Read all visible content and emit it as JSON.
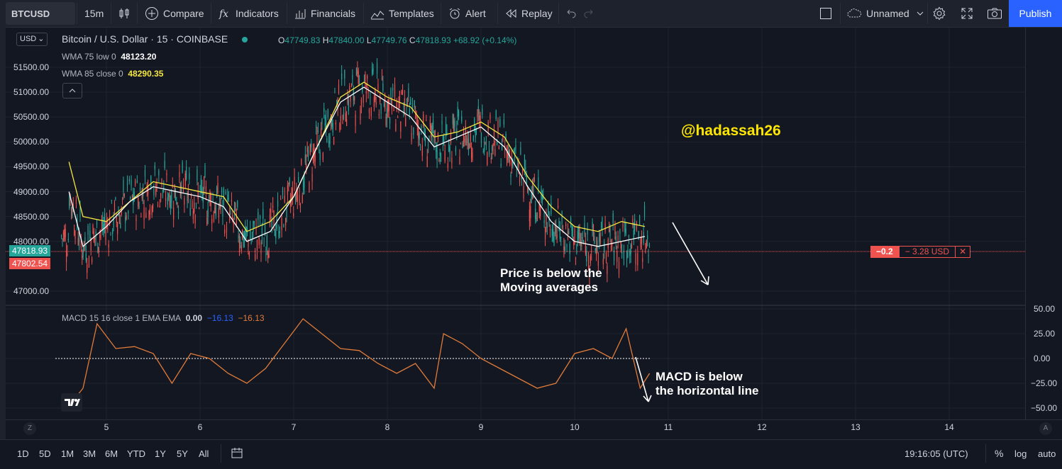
{
  "toolbar": {
    "symbol": "BTCUSD",
    "interval": "15m",
    "compare": "Compare",
    "indicators": "Indicators",
    "financials": "Financials",
    "templates": "Templates",
    "alert": "Alert",
    "replay": "Replay",
    "layout_name": "Unnamed",
    "publish": "Publish"
  },
  "legend": {
    "title": "Bitcoin / U.S. Dollar · 15 · COINBASE",
    "currency": "USD",
    "o_label": "O",
    "o_value": "47749.83",
    "h_label": "H",
    "h_value": "47840.00",
    "l_label": "L",
    "l_value": "47749.76",
    "c_label": "C",
    "c_value": "47818.93",
    "change": "+68.92 (+0.14%)",
    "wma1_label": "WMA 75 low 0",
    "wma1_value": "48123.20",
    "wma2_label": "WMA 85 close 0",
    "wma2_value": "48290.35",
    "macd_label": "MACD 15 16 close 1 EMA EMA",
    "macd_v1": "0.00",
    "macd_v2": "−16.13",
    "macd_v3": "−16.13"
  },
  "price_axis": {
    "ticks": [
      "51500.00",
      "51000.00",
      "50500.00",
      "50000.00",
      "49500.00",
      "49000.00",
      "48500.00",
      "48000.00",
      "47000.00"
    ],
    "current_price": "47818.93",
    "line_price": "47802.54"
  },
  "macd_axis": {
    "ticks": [
      "50.00",
      "25.00",
      "0.00",
      "−25.00",
      "−50.00"
    ]
  },
  "time_axis": {
    "ticks": [
      "5",
      "6",
      "7",
      "8",
      "9",
      "10",
      "11",
      "12",
      "13",
      "14"
    ]
  },
  "position_tag": {
    "left": "−0.2",
    "middle": "− 3.28 USD",
    "close": "✕"
  },
  "annotations": {
    "handle": "@hadassah26",
    "price_note_1": "Price is below the",
    "price_note_2": "Moving averages",
    "macd_note_1": "MACD is below",
    "macd_note_2": "the horizontal line"
  },
  "bottom": {
    "ranges": [
      "1D",
      "5D",
      "1M",
      "3M",
      "6M",
      "YTD",
      "1Y",
      "5Y",
      "All"
    ],
    "clock": "19:16:05 (UTC)",
    "pct": "%",
    "log": "log",
    "auto": "auto"
  },
  "colors": {
    "bull": "#26a69a",
    "bear": "#ef5350",
    "wma75": "#ffffff",
    "wma85": "#f5e642",
    "macd": "#e07b39",
    "accent": "#2962ff",
    "handle": "#ffe600"
  },
  "chart_data": [
    {
      "type": "line",
      "title": "Bitcoin / U.S. Dollar · 15 · COINBASE",
      "series": [
        {
          "name": "WMA 75 low 0",
          "x": [
            "4.6",
            "4.75",
            "5",
            "5.25",
            "5.5",
            "5.75",
            "6",
            "6.25",
            "6.5",
            "6.75",
            "7",
            "7.25",
            "7.5",
            "7.75",
            "8",
            "8.25",
            "8.5",
            "8.75",
            "9",
            "9.25",
            "9.5",
            "9.75",
            "10",
            "10.25",
            "10.5",
            "10.75"
          ],
          "values": [
            49000,
            47900,
            48300,
            48800,
            49100,
            49000,
            48900,
            48700,
            48000,
            48200,
            48900,
            49900,
            50800,
            51100,
            50800,
            50500,
            49900,
            50100,
            50300,
            49900,
            49100,
            48400,
            48000,
            47900,
            48000,
            48100
          ]
        },
        {
          "name": "WMA 85 close 0",
          "x": [
            "4.6",
            "4.75",
            "5",
            "5.25",
            "5.5",
            "5.75",
            "6",
            "6.25",
            "6.5",
            "6.75",
            "7",
            "7.25",
            "7.5",
            "7.75",
            "8",
            "8.25",
            "8.5",
            "8.75",
            "9",
            "9.25",
            "9.5",
            "9.75",
            "10",
            "10.25",
            "10.5",
            "10.75"
          ],
          "values": [
            49600,
            48500,
            48400,
            48800,
            49200,
            49100,
            49000,
            48900,
            48200,
            48400,
            48900,
            49900,
            50900,
            51200,
            50900,
            50700,
            50100,
            50200,
            50400,
            50100,
            49300,
            48700,
            48300,
            48200,
            48400,
            48300
          ]
        }
      ],
      "ylim": [
        46800,
        51900
      ]
    },
    {
      "type": "line",
      "title": "MACD 15 16 close 1 EMA EMA",
      "series": [
        {
          "name": "MACD",
          "x": [
            "4.6",
            "4.75",
            "4.9",
            "5.1",
            "5.3",
            "5.5",
            "5.7",
            "5.9",
            "6.1",
            "6.3",
            "6.5",
            "6.7",
            "6.9",
            "7.1",
            "7.3",
            "7.5",
            "7.7",
            "7.9",
            "8.1",
            "8.3",
            "8.5",
            "8.6",
            "8.8",
            "9",
            "9.2",
            "9.4",
            "9.6",
            "9.8",
            "10",
            "10.2",
            "10.4",
            "10.55",
            "10.7",
            "10.8"
          ],
          "values": [
            -48,
            -30,
            35,
            10,
            12,
            5,
            -25,
            5,
            0,
            -15,
            -25,
            -10,
            15,
            40,
            25,
            10,
            8,
            -5,
            -15,
            -5,
            -30,
            25,
            15,
            0,
            -10,
            -20,
            -30,
            -25,
            5,
            10,
            0,
            30,
            -30,
            -15
          ]
        }
      ],
      "ylim": [
        -55,
        50
      ]
    }
  ]
}
